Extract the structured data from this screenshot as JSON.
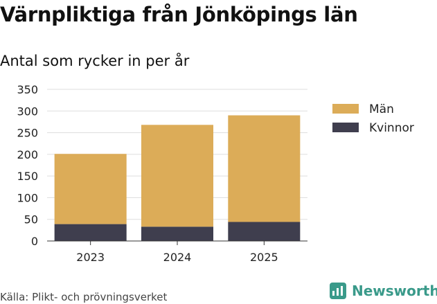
{
  "header": {
    "title": "Värnpliktiga från Jönköpings län",
    "subtitle": "Antal som rycker in per år"
  },
  "footer": {
    "source": "Källa: Plikt- och prövningsverket",
    "brand": "Newsworthy",
    "brand_color": "#3a9a8a"
  },
  "chart_data": {
    "type": "bar",
    "stacked": true,
    "title": "Värnpliktiga från Jönköpings län",
    "subtitle": "Antal som rycker in per år",
    "categories": [
      "2023",
      "2024",
      "2025"
    ],
    "series": [
      {
        "name": "Kvinnor",
        "color": "#3f3e4e",
        "values": [
          39,
          33,
          44
        ]
      },
      {
        "name": "Män",
        "color": "#dcac58",
        "values": [
          162,
          235,
          246
        ]
      }
    ],
    "legend_order": [
      "Män",
      "Kvinnor"
    ],
    "legend_position": "right",
    "ylim": [
      0,
      350
    ],
    "yticks": [
      0,
      50,
      100,
      150,
      200,
      250,
      300,
      350
    ],
    "grid": true,
    "grid_color": "#dddddd",
    "xlabel": "",
    "ylabel": ""
  }
}
